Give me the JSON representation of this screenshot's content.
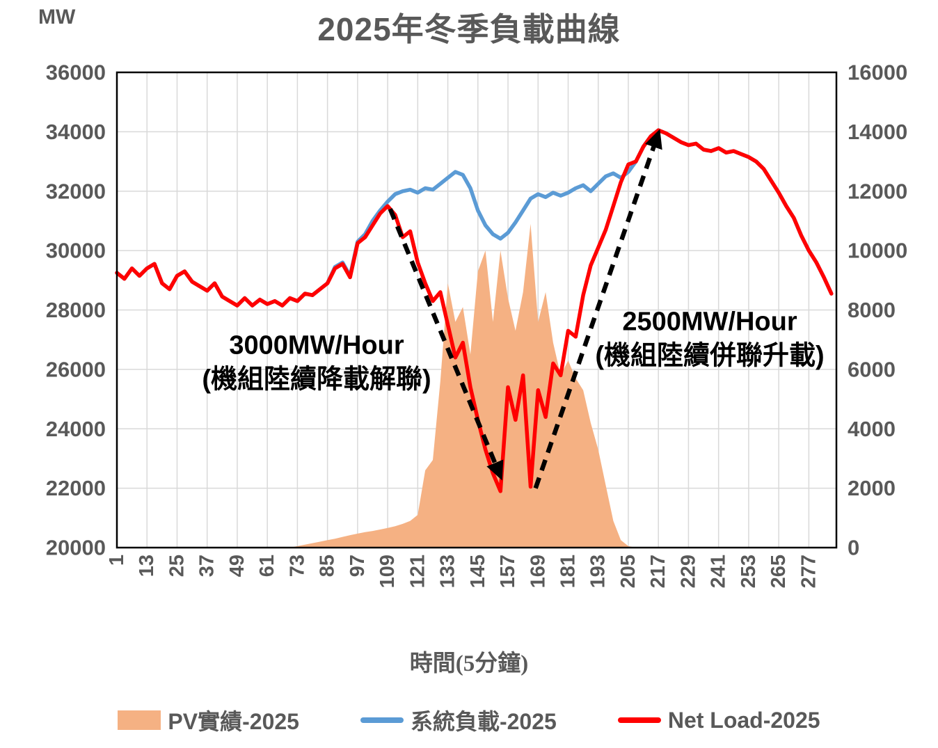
{
  "title": "2025年冬季負載曲線",
  "left_axis_unit": "MW",
  "x_axis_title": "時間(5分鐘)",
  "annotations": {
    "ramp_down": {
      "line1": "3000MW/Hour",
      "line2": "(機組陸續降載解聯)"
    },
    "ramp_up": {
      "line1": "2500MW/Hour",
      "line2": "(機組陸續併聯升載)"
    }
  },
  "legend": [
    {
      "label": "PV實績-2025",
      "color": "#F5B183",
      "swatch": "area"
    },
    {
      "label": "系統負載-2025",
      "color": "#5B9BD5",
      "swatch": "line"
    },
    {
      "label": "Net Load-2025",
      "color": "#FF0000",
      "swatch": "line"
    }
  ],
  "colors": {
    "text_gray": "#595959",
    "grid": "#D9D9D9",
    "border": "#000000",
    "annotation": "#000000",
    "pv_area": "#F5B183",
    "system_load": "#5B9BD5",
    "net_load": "#FF0000"
  },
  "chart_data": {
    "type": "combo",
    "title": "2025年冬季負載曲線",
    "xlabel": "時間(5分鐘)",
    "ylabel_left": "MW",
    "grid": true,
    "legend_position": "bottom",
    "x_tick_labels": [
      1,
      13,
      25,
      37,
      49,
      61,
      73,
      85,
      97,
      109,
      121,
      133,
      145,
      157,
      169,
      181,
      193,
      205,
      217,
      229,
      241,
      253,
      265,
      277
    ],
    "x_start": 1,
    "x_step": 3,
    "x_max": 288,
    "left_axis": {
      "min": 20000,
      "max": 36000,
      "step": 2000
    },
    "right_axis": {
      "min": 0,
      "max": 16000,
      "step": 2000
    },
    "series": [
      {
        "name": "PV實績-2025",
        "type": "area",
        "axis": "right",
        "color": "#F5B183",
        "values": [
          0,
          0,
          0,
          0,
          0,
          0,
          0,
          0,
          0,
          0,
          0,
          0,
          0,
          0,
          0,
          0,
          0,
          0,
          0,
          0,
          0,
          0,
          0,
          0,
          50,
          100,
          150,
          200,
          250,
          300,
          360,
          420,
          470,
          520,
          560,
          610,
          660,
          720,
          800,
          900,
          1100,
          2600,
          2950,
          5600,
          8900,
          7600,
          8100,
          6500,
          9300,
          10000,
          7600,
          10000,
          8400,
          7300,
          8600,
          10900,
          7600,
          8600,
          6900,
          5800,
          6300,
          5700,
          5300,
          4200,
          3300,
          2100,
          900,
          250,
          50,
          0,
          0,
          0,
          0,
          0,
          0,
          0,
          0,
          0,
          0,
          0,
          0,
          0,
          0,
          0,
          0,
          0,
          0,
          0,
          0,
          0,
          0,
          0,
          0,
          0,
          0,
          0
        ]
      },
      {
        "name": "系統負載-2025",
        "type": "line",
        "axis": "left",
        "color": "#5B9BD5",
        "values": [
          29250,
          29050,
          29400,
          29150,
          29400,
          29550,
          28900,
          28700,
          29150,
          29300,
          28950,
          28800,
          28650,
          28900,
          28450,
          28300,
          28150,
          28400,
          28150,
          28350,
          28200,
          28300,
          28150,
          28400,
          28300,
          28550,
          28500,
          28700,
          28900,
          29450,
          29600,
          29150,
          30300,
          30550,
          31000,
          31350,
          31650,
          31900,
          32000,
          32050,
          31950,
          32100,
          32050,
          32250,
          32450,
          32650,
          32550,
          32100,
          31350,
          30850,
          30550,
          30400,
          30600,
          30950,
          31350,
          31750,
          31900,
          31800,
          31950,
          31850,
          31950,
          32100,
          32200,
          32000,
          32250,
          32500,
          32600,
          32450,
          32650,
          33000,
          33500,
          33850,
          34050,
          33950,
          33800,
          33650,
          33550,
          33600,
          33400,
          33350,
          33450,
          33300,
          33350,
          33250,
          33150,
          33000,
          32750,
          32350,
          31950,
          31500,
          31100,
          30500,
          30000,
          29600,
          29100,
          28550
        ]
      },
      {
        "name": "Net Load-2025",
        "type": "line",
        "axis": "left",
        "color": "#FF0000",
        "values": [
          29250,
          29050,
          29400,
          29150,
          29400,
          29550,
          28900,
          28700,
          29150,
          29300,
          28950,
          28800,
          28650,
          28900,
          28450,
          28300,
          28150,
          28400,
          28150,
          28350,
          28200,
          28300,
          28150,
          28400,
          28300,
          28550,
          28500,
          28700,
          28900,
          29400,
          29550,
          29100,
          30250,
          30450,
          30850,
          31250,
          31500,
          31200,
          30450,
          30650,
          29600,
          28900,
          28300,
          28600,
          27500,
          26400,
          26900,
          25400,
          24300,
          23300,
          22500,
          21900,
          25400,
          24300,
          25800,
          22050,
          25300,
          24400,
          26200,
          25800,
          27300,
          27100,
          28500,
          29500,
          30100,
          30700,
          31500,
          32300,
          32900,
          33000,
          33500,
          33850,
          34050,
          33950,
          33800,
          33650,
          33550,
          33600,
          33400,
          33350,
          33450,
          33300,
          33350,
          33250,
          33150,
          33000,
          32750,
          32350,
          31950,
          31500,
          31100,
          30500,
          30000,
          29600,
          29100,
          28550
        ]
      }
    ],
    "ramp_arrows": [
      {
        "name": "ramp-down",
        "rate_label": "3000MW/Hour",
        "note": "(機組陸續降載解聯)",
        "from": {
          "t": 110,
          "mw": 31400
        },
        "to": {
          "t": 154,
          "mw": 22400
        }
      },
      {
        "name": "ramp-up",
        "rate_label": "2500MW/Hour",
        "note": "(機組陸續併聯升載)",
        "from": {
          "t": 168,
          "mw": 22000
        },
        "to": {
          "t": 217,
          "mw": 33950
        }
      }
    ]
  }
}
